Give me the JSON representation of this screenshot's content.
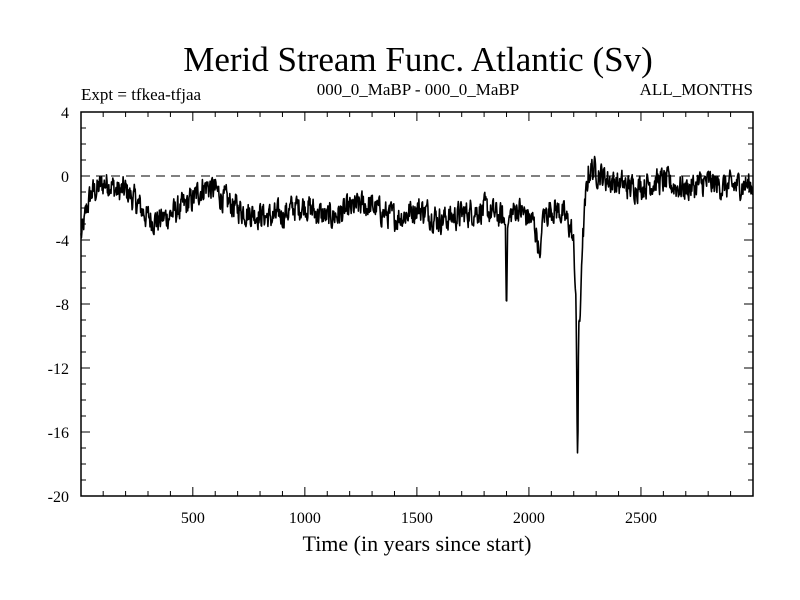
{
  "chart_data": {
    "type": "line",
    "title": "Merid Stream Func. Atlantic (Sv)",
    "subtitle_left": "Expt = tfkea-tfjaa",
    "subtitle_center": "000_0_MaBP - 000_0_MaBP",
    "subtitle_right": "ALL_MONTHS",
    "xlabel": "Time (in years since start)",
    "ylabel": "",
    "xlim": [
      1,
      3000
    ],
    "ylim": [
      -20,
      4
    ],
    "x_ticks": [
      500,
      1000,
      1500,
      2000,
      2500
    ],
    "x_tick_labels": [
      "500",
      "1000",
      "1500",
      "2000",
      "2500"
    ],
    "y_ticks": [
      4,
      0,
      -4,
      -8,
      -12,
      -16,
      -20
    ],
    "y_tick_labels": [
      "4",
      "0",
      "-4",
      "-8",
      "-12",
      "-16",
      "-20"
    ],
    "reference_line": {
      "y": 0,
      "style": "dashed"
    },
    "grid": false,
    "series": [
      {
        "points": [
          [
            1,
            -3.8
          ],
          [
            15,
            -3.0
          ],
          [
            30,
            -1.8
          ],
          [
            50,
            -1.0
          ],
          [
            70,
            -0.9
          ],
          [
            100,
            -0.5
          ],
          [
            130,
            -0.4
          ],
          [
            160,
            -1.0
          ],
          [
            200,
            -0.9
          ],
          [
            250,
            -1.7
          ],
          [
            300,
            -2.6
          ],
          [
            350,
            -2.8
          ],
          [
            400,
            -2.4
          ],
          [
            450,
            -2.0
          ],
          [
            500,
            -1.5
          ],
          [
            530,
            -0.9
          ],
          [
            560,
            -0.6
          ],
          [
            600,
            -0.9
          ],
          [
            650,
            -1.6
          ],
          [
            700,
            -2.0
          ],
          [
            750,
            -2.3
          ],
          [
            800,
            -2.4
          ],
          [
            850,
            -2.6
          ],
          [
            900,
            -2.4
          ],
          [
            950,
            -2.0
          ],
          [
            1000,
            -1.8
          ],
          [
            1050,
            -2.3
          ],
          [
            1100,
            -2.6
          ],
          [
            1150,
            -2.4
          ],
          [
            1200,
            -2.1
          ],
          [
            1250,
            -1.8
          ],
          [
            1300,
            -1.9
          ],
          [
            1350,
            -2.3
          ],
          [
            1400,
            -2.6
          ],
          [
            1450,
            -2.4
          ],
          [
            1500,
            -2.0
          ],
          [
            1550,
            -2.3
          ],
          [
            1600,
            -2.7
          ],
          [
            1650,
            -2.6
          ],
          [
            1700,
            -2.4
          ],
          [
            1750,
            -2.2
          ],
          [
            1800,
            -2.1
          ],
          [
            1850,
            -2.4
          ],
          [
            1880,
            -2.6
          ],
          [
            1895,
            -3.0
          ],
          [
            1900,
            -8.7
          ],
          [
            1905,
            -3.2
          ],
          [
            1920,
            -2.4
          ],
          [
            1950,
            -2.0
          ],
          [
            1980,
            -2.4
          ],
          [
            2000,
            -2.6
          ],
          [
            2020,
            -2.9
          ],
          [
            2040,
            -4.0
          ],
          [
            2050,
            -5.3
          ],
          [
            2060,
            -2.6
          ],
          [
            2100,
            -2.0
          ],
          [
            2140,
            -2.2
          ],
          [
            2170,
            -2.8
          ],
          [
            2190,
            -3.4
          ],
          [
            2200,
            -4.5
          ],
          [
            2205,
            -6.5
          ],
          [
            2210,
            -7.5
          ],
          [
            2215,
            -15.5
          ],
          [
            2218,
            -18.2
          ],
          [
            2222,
            -9.0
          ],
          [
            2228,
            -9.3
          ],
          [
            2235,
            -5.5
          ],
          [
            2245,
            -3.0
          ],
          [
            2255,
            -1.2
          ],
          [
            2265,
            0.2
          ],
          [
            2280,
            0.5
          ],
          [
            2300,
            0.3
          ],
          [
            2350,
            -0.2
          ],
          [
            2400,
            -0.5
          ],
          [
            2450,
            -0.7
          ],
          [
            2500,
            -0.6
          ],
          [
            2550,
            -0.4
          ],
          [
            2600,
            -0.3
          ],
          [
            2650,
            -0.6
          ],
          [
            2700,
            -0.8
          ],
          [
            2750,
            -0.6
          ],
          [
            2800,
            -0.4
          ],
          [
            2850,
            -0.6
          ],
          [
            2900,
            -0.7
          ],
          [
            2950,
            -0.5
          ],
          [
            3000,
            -0.6
          ]
        ],
        "noise_amplitude": 1.3
      }
    ]
  }
}
